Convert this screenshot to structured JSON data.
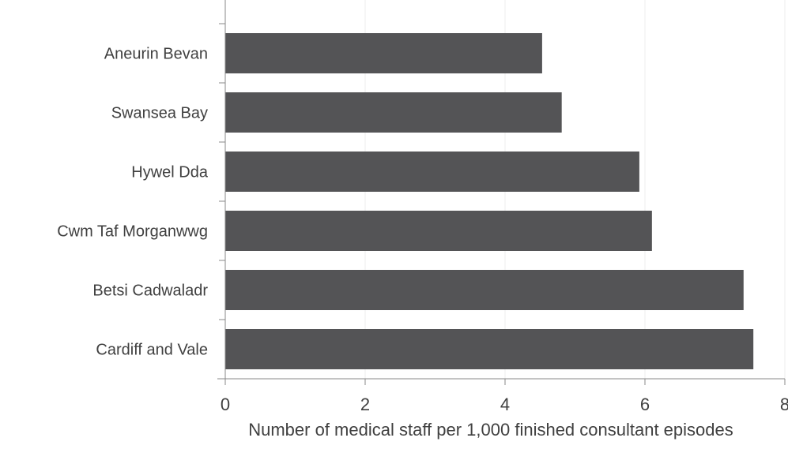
{
  "chart_data": {
    "type": "bar",
    "orientation": "horizontal",
    "categories": [
      "Aneurin Bevan",
      "Swansea Bay",
      "Hywel Dda",
      "Cwm Taf Morganwwg",
      "Betsi Cadwaladr",
      "Cardiff and Vale"
    ],
    "values": [
      4.53,
      4.81,
      5.92,
      6.1,
      7.41,
      7.55
    ],
    "xlabel": "Number of medical staff per 1,000 finished consultant episodes",
    "ylabel": "",
    "xlim": [
      0,
      8
    ],
    "xticks": [
      "0",
      "2",
      "4",
      "6",
      "8"
    ],
    "grid": "vertical",
    "bar_color": "#545456",
    "grid_color": "#eeeeee",
    "axis_color": "#888888",
    "text_color": "#404040"
  }
}
